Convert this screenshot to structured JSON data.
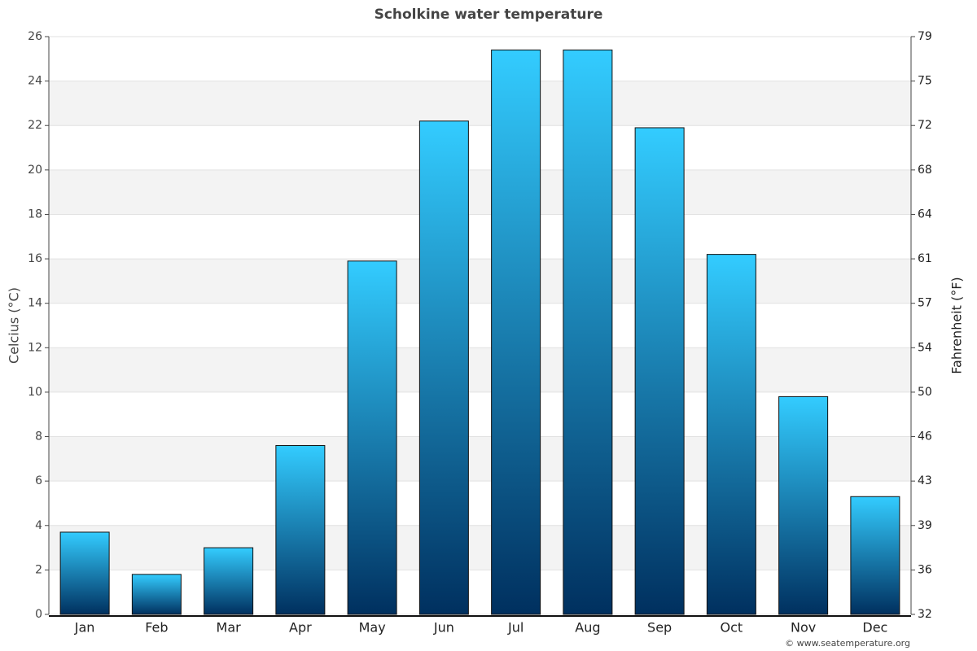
{
  "chart_data": {
    "type": "bar",
    "title": "Scholkine water temperature",
    "categories": [
      "Jan",
      "Feb",
      "Mar",
      "Apr",
      "May",
      "Jun",
      "Jul",
      "Aug",
      "Sep",
      "Oct",
      "Nov",
      "Dec"
    ],
    "values": [
      3.7,
      1.8,
      3.0,
      7.6,
      15.9,
      22.2,
      25.4,
      25.4,
      21.9,
      16.2,
      9.8,
      5.3
    ],
    "gradient": [
      "#33ccff",
      "#00305f"
    ],
    "y_label": "Celcius (°C)",
    "y2_label": "Fahrenheit (°F)",
    "ylim": [
      0,
      26
    ],
    "yticks": [
      0,
      2,
      4,
      6,
      8,
      10,
      12,
      14,
      16,
      18,
      20,
      22,
      24,
      26
    ],
    "y2lim": [
      32,
      78.8
    ],
    "y2ticks": [
      32,
      {
        "value": 35.6,
        "label": "36"
      },
      {
        "value": 39.2,
        "label": "39"
      },
      {
        "value": 42.8,
        "label": "43"
      },
      {
        "value": 46.4,
        "label": "46"
      },
      50,
      {
        "value": 53.6,
        "label": "54"
      },
      {
        "value": 57.2,
        "label": "57"
      },
      {
        "value": 60.8,
        "label": "61"
      },
      {
        "value": 64.4,
        "label": "64"
      },
      68,
      {
        "value": 71.6,
        "label": "72"
      },
      {
        "value": 75.2,
        "label": "75"
      },
      {
        "value": 78.8,
        "label": "79"
      }
    ],
    "grid": true,
    "credit": "© www.seatemperature.org"
  }
}
